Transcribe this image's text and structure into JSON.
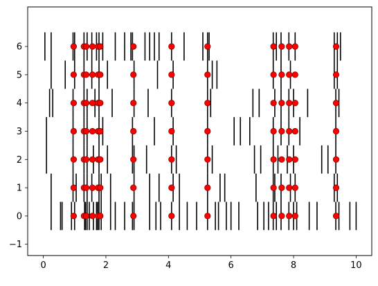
{
  "chart_data": {
    "type": "eventplot",
    "title": "",
    "xlabel": "",
    "ylabel": "",
    "xlim": [
      -0.5,
      10.5
    ],
    "ylim": [
      -1.4,
      7.4
    ],
    "xticks": [
      0,
      2,
      4,
      6,
      8,
      10
    ],
    "yticks": [
      -1,
      0,
      1,
      2,
      3,
      4,
      5,
      6
    ],
    "grid": false,
    "line_length": 1.0,
    "colors": {
      "events": "#000000",
      "markers": "#ff0000",
      "marker_edge": "#800000",
      "axes": "#000000",
      "background": "#ffffff"
    },
    "events": [
      [
        0.25,
        0.55,
        0.6,
        0.9,
        1.0,
        1.32,
        1.35,
        1.4,
        1.47,
        1.6,
        1.7,
        1.74,
        1.78,
        1.85,
        2.15,
        2.3,
        2.6,
        2.85,
        2.9,
        3.4,
        3.6,
        3.75,
        4.1,
        4.35,
        4.6,
        4.9,
        5.25,
        5.5,
        5.6,
        5.85,
        6.0,
        6.25,
        6.85,
        7.05,
        7.2,
        7.35,
        7.45,
        7.6,
        7.85,
        8.0,
        8.1,
        8.5,
        8.75,
        9.35,
        9.45,
        9.8,
        10.0
      ],
      [
        0.25,
        0.95,
        1.05,
        1.3,
        1.4,
        1.55,
        1.78,
        1.85,
        2.15,
        2.9,
        3.4,
        3.7,
        4.15,
        4.35,
        5.25,
        5.65,
        5.8,
        6.8,
        7.35,
        7.4,
        7.6,
        7.9,
        8.05,
        9.3,
        9.4
      ],
      [
        0.1,
        0.95,
        1.3,
        1.4,
        1.6,
        1.78,
        2.05,
        2.85,
        2.9,
        3.3,
        4.1,
        4.25,
        5.25,
        5.4,
        6.75,
        6.95,
        7.35,
        7.5,
        7.8,
        8.0,
        8.9,
        9.1,
        9.35
      ],
      [
        0.1,
        0.95,
        1.3,
        1.4,
        1.78,
        1.9,
        2.85,
        3.55,
        4.15,
        5.25,
        6.1,
        6.3,
        6.6,
        7.35,
        7.6,
        7.85,
        8.2,
        9.35
      ],
      [
        0.2,
        0.3,
        0.95,
        1.3,
        1.4,
        1.65,
        1.78,
        2.2,
        2.9,
        3.35,
        4.1,
        5.25,
        5.35,
        6.7,
        6.9,
        7.4,
        7.6,
        7.85,
        8.0,
        8.45,
        9.35,
        9.45
      ],
      [
        0.25,
        0.7,
        1.0,
        1.3,
        1.55,
        1.78,
        2.05,
        2.9,
        3.65,
        4.15,
        5.25,
        5.4,
        5.55,
        7.35,
        7.6,
        7.9,
        9.3,
        9.4
      ],
      [
        0.05,
        0.25,
        0.95,
        1.0,
        1.3,
        1.4,
        1.55,
        1.7,
        1.78,
        1.9,
        2.3,
        2.6,
        2.8,
        2.85,
        3.25,
        3.4,
        3.55,
        3.7,
        4.1,
        4.5,
        5.1,
        5.25,
        5.3,
        7.35,
        7.45,
        7.6,
        7.85,
        8.05,
        9.3,
        9.4,
        9.5
      ]
    ],
    "marker_x": [
      0.97,
      1.3,
      1.37,
      1.57,
      1.75,
      1.82,
      2.88,
      4.1,
      5.25,
      7.36,
      7.62,
      7.86,
      8.05,
      9.36
    ],
    "marker_rows": [
      0,
      1,
      2,
      3,
      4,
      5,
      6
    ]
  }
}
